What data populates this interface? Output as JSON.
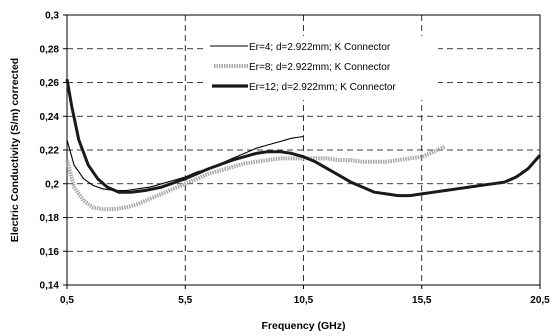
{
  "chart_data": {
    "type": "line",
    "title": "",
    "xlabel": "Frequency (GHz)",
    "ylabel": "Electric Conductivity (S/m) corrected",
    "xlim": [
      0.5,
      20.5
    ],
    "ylim": [
      0.14,
      0.3
    ],
    "x_ticks": [
      "0,5",
      "5,5",
      "10,5",
      "15,5",
      "20,5"
    ],
    "y_ticks": [
      "0,14",
      "0,16",
      "0,18",
      "0,2",
      "0,22",
      "0,24",
      "0,26",
      "0,28",
      "0,3"
    ],
    "grid": "dashed",
    "legend_position": "top-center",
    "series": [
      {
        "name": "Er=4; d=2.922mm; K Connector",
        "style": "thin-solid",
        "color": "#000000",
        "x": [
          0.5,
          0.8,
          1.2,
          1.6,
          2.0,
          2.5,
          3.0,
          3.5,
          4.0,
          4.5,
          5.0,
          5.5,
          6.0,
          6.5,
          7.0,
          7.5,
          8.0,
          8.5,
          9.0,
          9.5,
          10.0,
          10.5
        ],
        "y": [
          0.226,
          0.211,
          0.203,
          0.199,
          0.197,
          0.196,
          0.196,
          0.197,
          0.198,
          0.2,
          0.202,
          0.204,
          0.207,
          0.209,
          0.212,
          0.215,
          0.218,
          0.221,
          0.223,
          0.225,
          0.227,
          0.228
        ]
      },
      {
        "name": "Er=8; d=2.922mm; K Connector",
        "style": "light-dotted-band",
        "color": "#9a9a9a",
        "x": [
          0.5,
          0.8,
          1.2,
          1.6,
          2.0,
          2.5,
          3.0,
          3.5,
          4.0,
          4.5,
          5.0,
          5.5,
          6.0,
          6.5,
          7.0,
          7.5,
          8.0,
          8.5,
          9.0,
          9.5,
          10.0,
          10.5,
          11.0,
          11.5,
          12.0,
          12.5,
          13.0,
          13.5,
          14.0,
          14.5,
          15.0,
          15.5,
          16.0,
          16.5
        ],
        "y": [
          0.214,
          0.198,
          0.19,
          0.186,
          0.185,
          0.185,
          0.186,
          0.188,
          0.191,
          0.194,
          0.197,
          0.2,
          0.203,
          0.206,
          0.208,
          0.21,
          0.212,
          0.213,
          0.214,
          0.215,
          0.215,
          0.215,
          0.215,
          0.215,
          0.214,
          0.214,
          0.213,
          0.213,
          0.213,
          0.214,
          0.215,
          0.216,
          0.219,
          0.222
        ]
      },
      {
        "name": "Er=12; d=2.922mm; K Connector",
        "style": "thick-dark",
        "color": "#1a1a1a",
        "x": [
          0.5,
          0.7,
          1.0,
          1.4,
          1.8,
          2.2,
          2.7,
          3.2,
          3.8,
          4.5,
          5.5,
          6.5,
          7.5,
          8.5,
          9.0,
          9.5,
          10.0,
          10.5,
          11.0,
          11.5,
          12.0,
          12.5,
          13.0,
          13.5,
          14.0,
          14.5,
          15.0,
          15.5,
          16.0,
          16.5,
          17.0,
          17.5,
          18.0,
          18.5,
          19.0,
          19.5,
          20.0,
          20.5
        ],
        "y": [
          0.262,
          0.246,
          0.226,
          0.211,
          0.203,
          0.198,
          0.195,
          0.195,
          0.196,
          0.198,
          0.203,
          0.209,
          0.214,
          0.218,
          0.219,
          0.219,
          0.218,
          0.216,
          0.213,
          0.209,
          0.205,
          0.201,
          0.198,
          0.195,
          0.194,
          0.193,
          0.193,
          0.194,
          0.195,
          0.196,
          0.197,
          0.198,
          0.199,
          0.2,
          0.201,
          0.204,
          0.209,
          0.217
        ]
      }
    ]
  }
}
